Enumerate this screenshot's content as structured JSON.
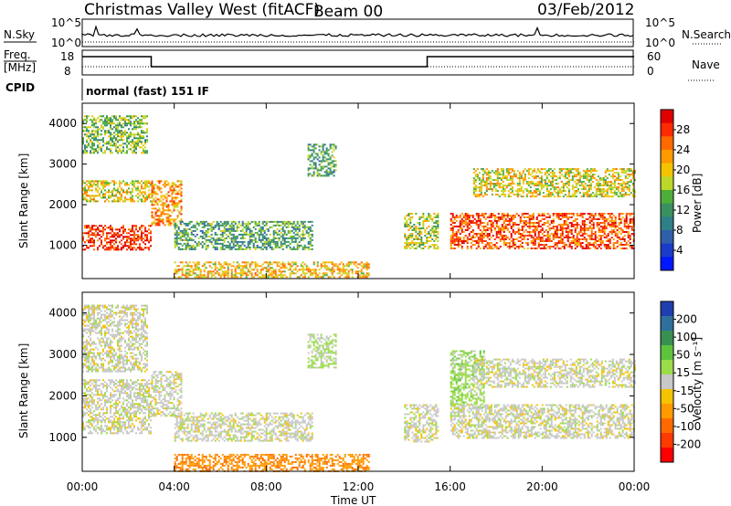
{
  "header": {
    "title": "Christmas Valley West (fitACF)",
    "beam": "Beam 00",
    "date": "03/Feb/2012"
  },
  "aux_panels": {
    "nsky_label": "N.Sky",
    "nsearch_label": "N.Search",
    "count_ticks": [
      "10^5",
      "10^0"
    ],
    "freq_label": "Freq.",
    "freq_unit": "[MHz]",
    "freq_ticks": [
      "18",
      "8"
    ],
    "nave_label": "Nave",
    "nave_ticks": [
      "60",
      "0"
    ],
    "cpid_label": "CPID",
    "cpid_value": "normal (fast) 151 IF"
  },
  "colorbars": {
    "power_title": "Power [dB]",
    "power_ticks": [
      "28",
      "24",
      "20",
      "16",
      "12",
      "8",
      "4"
    ],
    "power_colors": [
      "#e00000",
      "#ff2a00",
      "#ff6a00",
      "#ff9a00",
      "#f5c400",
      "#bcd82a",
      "#4fae3a",
      "#3a9060",
      "#2f7f86",
      "#2f5fa8",
      "#1a3cc8",
      "#0018ff"
    ],
    "velocity_title": "Velocity [m s⁻¹]",
    "velocity_ticks": [
      "200",
      "100",
      "50",
      "15",
      "-15",
      "-50",
      "-100",
      "-200"
    ],
    "velocity_colors": [
      "#1f3fae",
      "#2e6f9c",
      "#3a9050",
      "#5ec33c",
      "#9bdc4a",
      "#c8c8c8",
      "#f5c400",
      "#ff9a00",
      "#ff6a00",
      "#ff3a00",
      "#ff0000"
    ]
  },
  "axes": {
    "xlabel": "Time UT",
    "ylabel": "Slant Range [km]",
    "x_ticks": [
      "00:00",
      "04:00",
      "08:00",
      "12:00",
      "16:00",
      "20:00",
      "00:00"
    ],
    "y_ticks": [
      "4000",
      "3000",
      "2000",
      "1000"
    ]
  },
  "chart_data": [
    {
      "type": "heatmap",
      "name": "power",
      "xlabel": "Time UT",
      "ylabel": "Slant Range [km]",
      "xlim_hours": [
        0,
        24
      ],
      "ylim_km": [
        180,
        4500
      ],
      "colorbar": "Power [dB]",
      "clim": [
        0,
        30
      ],
      "echo_regions": [
        {
          "x_hours": [
            0.0,
            3.0
          ],
          "y_km": [
            900,
            1500
          ],
          "value_db": 28
        },
        {
          "x_hours": [
            0.0,
            3.0
          ],
          "y_km": [
            2100,
            2600
          ],
          "value_db": 18
        },
        {
          "x_hours": [
            0.0,
            2.8
          ],
          "y_km": [
            3300,
            4200
          ],
          "value_db": 14
        },
        {
          "x_hours": [
            3.0,
            4.3
          ],
          "y_km": [
            1500,
            2600
          ],
          "value_db": 22
        },
        {
          "x_hours": [
            4.0,
            10.0
          ],
          "y_km": [
            900,
            1600
          ],
          "value_db": 12
        },
        {
          "x_hours": [
            4.0,
            12.5
          ],
          "y_km": [
            200,
            600
          ],
          "value_db": 20
        },
        {
          "x_hours": [
            9.8,
            11.0
          ],
          "y_km": [
            2700,
            3500
          ],
          "value_db": 12
        },
        {
          "x_hours": [
            14.0,
            15.5
          ],
          "y_km": [
            900,
            1800
          ],
          "value_db": 16
        },
        {
          "x_hours": [
            16.0,
            24.0
          ],
          "y_km": [
            900,
            1800
          ],
          "value_db": 26
        },
        {
          "x_hours": [
            17.0,
            24.0
          ],
          "y_km": [
            2200,
            2900
          ],
          "value_db": 18
        }
      ]
    },
    {
      "type": "heatmap",
      "name": "velocity",
      "xlabel": "Time UT",
      "ylabel": "Slant Range [km]",
      "xlim_hours": [
        0,
        24
      ],
      "ylim_km": [
        180,
        4500
      ],
      "colorbar": "Velocity [m s⁻¹]",
      "clim": [
        -200,
        200
      ],
      "echo_regions": [
        {
          "x_hours": [
            0.0,
            3.0
          ],
          "y_km": [
            1100,
            2400
          ],
          "value_ms": 0
        },
        {
          "x_hours": [
            0.0,
            2.8
          ],
          "y_km": [
            2600,
            4200
          ],
          "value_ms": 0
        },
        {
          "x_hours": [
            3.0,
            4.3
          ],
          "y_km": [
            1500,
            2600
          ],
          "value_ms": 0
        },
        {
          "x_hours": [
            4.0,
            10.0
          ],
          "y_km": [
            900,
            1600
          ],
          "value_ms": 0
        },
        {
          "x_hours": [
            4.0,
            12.5
          ],
          "y_km": [
            200,
            600
          ],
          "value_ms": -90
        },
        {
          "x_hours": [
            9.8,
            11.0
          ],
          "y_km": [
            2700,
            3500
          ],
          "value_ms": 25
        },
        {
          "x_hours": [
            14.0,
            15.5
          ],
          "y_km": [
            900,
            1800
          ],
          "value_ms": 0
        },
        {
          "x_hours": [
            16.0,
            17.5
          ],
          "y_km": [
            1700,
            3100
          ],
          "value_ms": 40
        },
        {
          "x_hours": [
            16.0,
            24.0
          ],
          "y_km": [
            1000,
            1800
          ],
          "value_ms": 0
        },
        {
          "x_hours": [
            17.0,
            24.0
          ],
          "y_km": [
            2200,
            2900
          ],
          "value_ms": 0
        }
      ]
    }
  ]
}
